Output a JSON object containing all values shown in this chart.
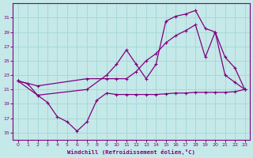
{
  "xlabel": "Windchill (Refroidissement éolien,°C)",
  "background_color": "#c5e8e8",
  "grid_color": "#a8d8d8",
  "line_color": "#800080",
  "x_ticks": [
    0,
    1,
    2,
    3,
    4,
    5,
    6,
    7,
    8,
    9,
    10,
    11,
    12,
    13,
    14,
    15,
    16,
    17,
    18,
    19,
    20,
    21,
    22,
    23
  ],
  "y_ticks": [
    15,
    17,
    19,
    21,
    23,
    25,
    27,
    29,
    31
  ],
  "xlim": [
    -0.5,
    23.5
  ],
  "ylim": [
    14.0,
    33.0
  ],
  "line1_x": [
    0,
    1,
    2,
    3,
    4,
    5,
    6,
    7,
    8,
    9,
    10,
    11,
    12,
    13,
    14,
    15,
    16,
    17,
    18,
    19,
    20,
    21,
    22,
    23
  ],
  "line1_y": [
    22.2,
    21.8,
    20.2,
    19.2,
    17.2,
    16.5,
    15.2,
    16.5,
    19.5,
    20.5,
    20.3,
    20.3,
    20.3,
    20.3,
    20.3,
    20.4,
    20.5,
    20.5,
    20.6,
    20.6,
    20.6,
    20.6,
    20.7,
    21.0
  ],
  "line2_x": [
    0,
    2,
    7,
    9,
    10,
    11,
    12,
    13,
    14,
    15,
    16,
    17,
    18,
    19,
    20,
    21,
    22,
    23
  ],
  "line2_y": [
    22.2,
    20.2,
    21.0,
    23.0,
    24.5,
    26.5,
    24.5,
    22.5,
    24.5,
    30.5,
    31.2,
    31.5,
    32.0,
    29.5,
    29.0,
    23.0,
    22.0,
    21.0
  ],
  "line3_x": [
    0,
    2,
    7,
    9,
    10,
    11,
    12,
    13,
    14,
    15,
    16,
    17,
    18,
    19,
    20,
    21,
    22,
    23
  ],
  "line3_y": [
    22.2,
    21.5,
    22.5,
    22.5,
    22.5,
    22.5,
    23.5,
    25.0,
    26.0,
    27.5,
    28.5,
    29.2,
    30.0,
    25.5,
    29.0,
    25.5,
    24.0,
    21.0
  ]
}
